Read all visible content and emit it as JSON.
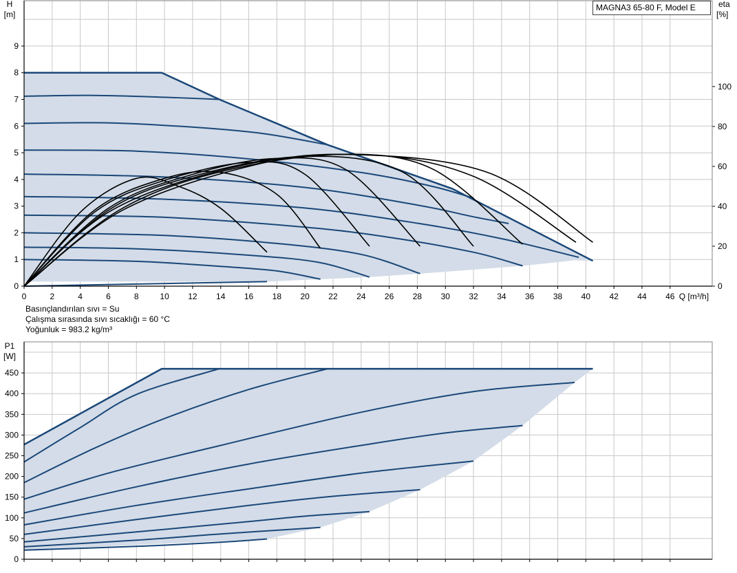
{
  "model_label": "MAGNA3 65-80 F, Model E",
  "fluid_info": {
    "fluid": "Basınçlandırılan sıvı = Su",
    "temperature": "Çalışma sırasında sıvı sıcaklığı = 60 °C",
    "density": "Yoğunluk = 983.2 kg/m³"
  },
  "colors": {
    "grid": "#c8c8c8",
    "frame": "#808080",
    "fill": "#d3dce8",
    "curve": "#1a4778",
    "eta": "#000000"
  },
  "chart_data": [
    {
      "type": "line",
      "name": "head-chart",
      "ylabel": "H",
      "yunit": "[m]",
      "y2label": "eta",
      "y2unit": "[%]",
      "xlabel": "Q [m³/h]",
      "xlim": [
        0,
        49
      ],
      "ylim": [
        0,
        10.7
      ],
      "y2lim": [
        0,
        143
      ],
      "grid": true,
      "x_ticks": [
        0,
        2,
        4,
        6,
        8,
        10,
        12,
        14,
        16,
        18,
        20,
        22,
        24,
        26,
        28,
        30,
        32,
        34,
        36,
        38,
        40,
        42,
        44,
        46
      ],
      "x_tick_labels": [
        "0",
        "2",
        "4",
        "6",
        "8",
        "10",
        "12",
        "14",
        "16",
        "18",
        "20",
        "22",
        "24",
        "26",
        "28",
        "30",
        "32",
        "34",
        "36",
        "38",
        "40",
        "42",
        "44",
        "46"
      ],
      "y_ticks": [
        0,
        1,
        2,
        3,
        4,
        5,
        6,
        7,
        8,
        9
      ],
      "y_tick_labels": [
        "0",
        "1",
        "2",
        "3",
        "4",
        "5",
        "6",
        "7",
        "8",
        "9"
      ],
      "y2_ticks": [
        0,
        20,
        40,
        60,
        80,
        100
      ],
      "y2_tick_labels": [
        "0",
        "20",
        "40",
        "60",
        "80",
        "100"
      ],
      "operating_area": [
        [
          0,
          8.0
        ],
        [
          9.8,
          8.0
        ],
        [
          13.9,
          7.0
        ],
        [
          21.6,
          5.3
        ],
        [
          30.5,
          3.65
        ],
        [
          40.5,
          0.95
        ],
        [
          39.2,
          0.97
        ],
        [
          35.5,
          0.76
        ],
        [
          28.2,
          0.47
        ],
        [
          24.6,
          0.34
        ],
        [
          21.1,
          0.26
        ],
        [
          17.3,
          0.17
        ],
        [
          0,
          0.17
        ]
      ],
      "max_curve": [
        [
          0,
          8.0
        ],
        [
          9.8,
          8.0
        ],
        [
          13.9,
          7.0
        ],
        [
          21.6,
          5.3
        ],
        [
          30.5,
          3.65
        ],
        [
          40.5,
          0.95
        ]
      ],
      "head_curves": [
        {
          "points": [
            [
              0,
              7.12
            ],
            [
              5,
              7.15
            ],
            [
              10,
              7.08
            ],
            [
              13.9,
              7.0
            ]
          ]
        },
        {
          "points": [
            [
              0,
              6.1
            ],
            [
              6,
              6.12
            ],
            [
              12,
              5.96
            ],
            [
              17,
              5.72
            ],
            [
              21.6,
              5.3
            ]
          ]
        },
        {
          "points": [
            [
              0,
              5.1
            ],
            [
              8,
              5.06
            ],
            [
              16,
              4.77
            ],
            [
              24,
              4.26
            ],
            [
              29,
              3.75
            ],
            [
              32,
              3.3
            ]
          ]
        },
        {
          "points": [
            [
              0,
              4.2
            ],
            [
              10,
              4.09
            ],
            [
              20,
              3.7
            ],
            [
              28,
              3.04
            ],
            [
              32,
              2.6
            ],
            [
              34.5,
              2.35
            ]
          ]
        },
        {
          "points": [
            [
              0,
              3.36
            ],
            [
              10,
              3.26
            ],
            [
              20,
              2.93
            ],
            [
              28,
              2.36
            ],
            [
              34,
              1.78
            ],
            [
              39.5,
              1.08
            ]
          ]
        },
        {
          "points": [
            [
              0,
              2.66
            ],
            [
              10,
              2.58
            ],
            [
              20,
              2.21
            ],
            [
              26,
              1.83
            ],
            [
              32,
              1.27
            ],
            [
              35.5,
              0.76
            ]
          ]
        },
        {
          "points": [
            [
              0,
              2.0
            ],
            [
              10,
              1.9
            ],
            [
              18,
              1.6
            ],
            [
              24,
              1.19
            ],
            [
              28.2,
              0.47
            ]
          ]
        },
        {
          "points": [
            [
              0,
              1.46
            ],
            [
              8,
              1.4
            ],
            [
              16,
              1.16
            ],
            [
              21,
              0.89
            ],
            [
              24.6,
              0.34
            ]
          ]
        },
        {
          "points": [
            [
              0,
              1.0
            ],
            [
              8,
              0.93
            ],
            [
              14,
              0.74
            ],
            [
              18,
              0.57
            ],
            [
              21.1,
              0.26
            ]
          ]
        },
        {
          "points": [
            [
              0,
              0.0
            ],
            [
              17.3,
              0.17
            ]
          ]
        }
      ],
      "eta_curves": [
        {
          "points": [
            [
              0,
              0
            ],
            [
              4,
              37
            ],
            [
              8,
              54
            ],
            [
              11,
              50
            ],
            [
              14,
              39
            ],
            [
              17.3,
              17
            ]
          ]
        },
        {
          "points": [
            [
              0,
              0
            ],
            [
              5,
              38
            ],
            [
              10,
              54
            ],
            [
              14,
              57
            ],
            [
              18,
              46
            ],
            [
              21.1,
              19
            ]
          ]
        },
        {
          "points": [
            [
              0,
              0
            ],
            [
              5,
              37
            ],
            [
              10,
              53
            ],
            [
              16,
              62
            ],
            [
              20,
              56
            ],
            [
              24.6,
              20
            ]
          ]
        },
        {
          "points": [
            [
              0,
              0
            ],
            [
              6,
              39
            ],
            [
              12,
              56
            ],
            [
              18,
              64
            ],
            [
              23,
              58
            ],
            [
              28.2,
              20
            ]
          ]
        },
        {
          "points": [
            [
              0,
              0
            ],
            [
              6,
              38
            ],
            [
              12,
              55
            ],
            [
              20,
              65
            ],
            [
              27,
              57
            ],
            [
              32,
              20
            ]
          ]
        },
        {
          "points": [
            [
              0,
              0
            ],
            [
              6,
              37
            ],
            [
              14,
              58
            ],
            [
              22,
              66
            ],
            [
              29,
              59
            ],
            [
              35.5,
              21
            ]
          ]
        },
        {
          "points": [
            [
              0,
              0
            ],
            [
              7,
              39
            ],
            [
              15,
              59
            ],
            [
              24,
              66
            ],
            [
              32,
              55
            ],
            [
              39.3,
              22
            ]
          ]
        },
        {
          "points": [
            [
              0,
              0
            ],
            [
              7,
              38
            ],
            [
              16,
              60
            ],
            [
              23,
              66
            ],
            [
              33,
              57
            ],
            [
              40.5,
              22
            ]
          ]
        }
      ]
    },
    {
      "type": "line",
      "name": "power-chart",
      "ylabel": "P1",
      "yunit": "[W]",
      "xlim": [
        0,
        49
      ],
      "ylim": [
        0,
        525
      ],
      "grid": true,
      "x_ticks": [
        0,
        2,
        4,
        6,
        8,
        10,
        12,
        14,
        16,
        18,
        20,
        22,
        24,
        26,
        28,
        30,
        32,
        34,
        36,
        38,
        40,
        42,
        44,
        46
      ],
      "y_ticks": [
        0,
        50,
        100,
        150,
        200,
        250,
        300,
        350,
        400,
        450
      ],
      "y_tick_labels": [
        "0",
        "50",
        "100",
        "150",
        "200",
        "250",
        "300",
        "350",
        "400",
        "450"
      ],
      "operating_area": [
        [
          0,
          277
        ],
        [
          9.8,
          460
        ],
        [
          40.5,
          460
        ],
        [
          39.2,
          427
        ],
        [
          35.5,
          323
        ],
        [
          32,
          237
        ],
        [
          28.2,
          168
        ],
        [
          24.6,
          115
        ],
        [
          21.1,
          77
        ],
        [
          17.3,
          49
        ],
        [
          0,
          22
        ]
      ],
      "max_curve": [
        [
          0,
          277
        ],
        [
          9.8,
          460
        ],
        [
          40.5,
          460
        ]
      ],
      "power_curves": [
        {
          "points": [
            [
              0,
              235
            ],
            [
              4,
              318
            ],
            [
              8,
              398
            ],
            [
              13.9,
              460
            ]
          ]
        },
        {
          "points": [
            [
              0,
              185
            ],
            [
              5,
              268
            ],
            [
              10,
              340
            ],
            [
              16,
              410
            ],
            [
              21.6,
              460
            ]
          ]
        },
        {
          "points": [
            [
              0,
              145
            ],
            [
              6,
              208
            ],
            [
              14,
              275
            ],
            [
              24,
              355
            ],
            [
              32,
              405
            ],
            [
              39.2,
              427
            ]
          ]
        },
        {
          "points": [
            [
              0,
              112
            ],
            [
              8,
              175
            ],
            [
              16,
              230
            ],
            [
              24,
              275
            ],
            [
              30,
              305
            ],
            [
              35.5,
              323
            ]
          ]
        },
        {
          "points": [
            [
              0,
              83
            ],
            [
              8,
              130
            ],
            [
              16,
              170
            ],
            [
              24,
              208
            ],
            [
              32,
              237
            ]
          ]
        },
        {
          "points": [
            [
              0,
              60
            ],
            [
              8,
              96
            ],
            [
              16,
              130
            ],
            [
              22,
              152
            ],
            [
              28.2,
              168
            ]
          ]
        },
        {
          "points": [
            [
              0,
              42
            ],
            [
              8,
              66
            ],
            [
              16,
              91
            ],
            [
              20,
              104
            ],
            [
              24.6,
              115
            ]
          ]
        },
        {
          "points": [
            [
              0,
              30
            ],
            [
              8,
              46
            ],
            [
              14,
              61
            ],
            [
              21.1,
              77
            ]
          ]
        },
        {
          "points": [
            [
              0,
              22
            ],
            [
              8,
              31
            ],
            [
              14,
              41
            ],
            [
              17.3,
              49
            ]
          ]
        }
      ]
    }
  ]
}
